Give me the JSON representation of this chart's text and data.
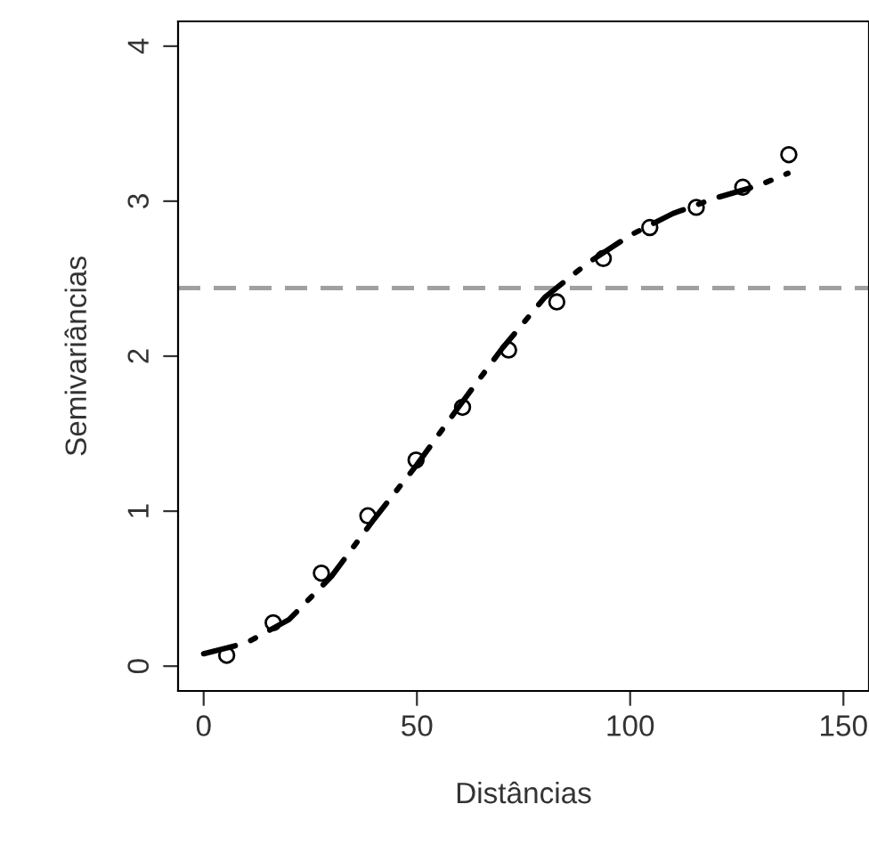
{
  "chart_data": {
    "type": "scatter",
    "xlabel": "Distâncias",
    "ylabel": "Semivariâncias",
    "xlim": [
      -6,
      156
    ],
    "ylim": [
      -0.16,
      4.16
    ],
    "xticks": [
      0,
      50,
      100,
      150
    ],
    "yticks": [
      0,
      1,
      2,
      3,
      4
    ],
    "grid": false,
    "legend": false,
    "series": [
      {
        "marker": "circle",
        "color": "#000000",
        "x": [
          5.4,
          16.3,
          27.6,
          38.5,
          49.8,
          60.7,
          71.5,
          82.8,
          93.7,
          104.6,
          115.5,
          126.4,
          137.2
        ],
        "values": [
          0.07,
          0.28,
          0.6,
          0.97,
          1.33,
          1.67,
          2.04,
          2.35,
          2.63,
          2.83,
          2.96,
          3.09,
          3.3
        ]
      },
      {
        "type": "line",
        "line_style": "dashdot",
        "color": "#000000",
        "x": [
          0,
          10,
          20,
          30,
          40,
          50,
          60,
          70,
          80,
          90,
          100,
          110,
          120,
          130,
          137
        ],
        "values": [
          0.08,
          0.15,
          0.3,
          0.58,
          0.95,
          1.3,
          1.68,
          2.05,
          2.38,
          2.6,
          2.78,
          2.92,
          3.02,
          3.1,
          3.18
        ]
      }
    ],
    "ref_lines": [
      {
        "axis": "y",
        "value": 2.44,
        "color": "#a0a0a0",
        "line_style": "dashed"
      }
    ]
  }
}
